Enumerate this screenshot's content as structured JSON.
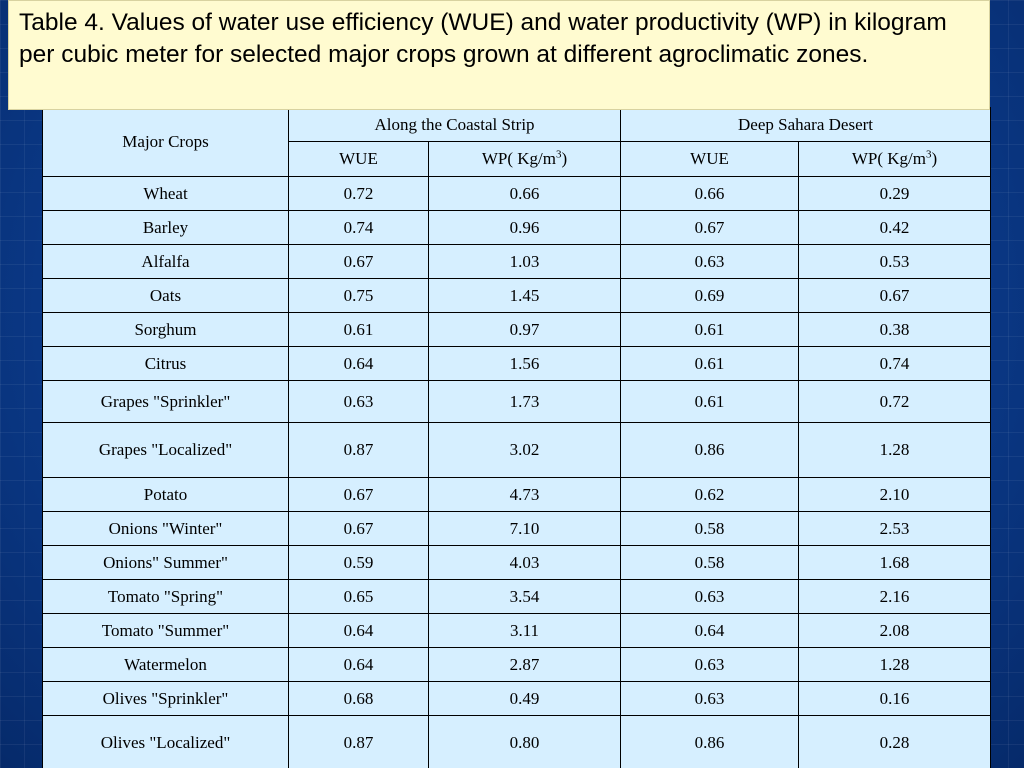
{
  "caption": "Table 4. Values of water use efficiency (WUE)  and water productivity (WP) in kilogram per cubic meter  for selected major crops grown at different agroclimatic zones.",
  "table": {
    "crop_header": "Major Crops",
    "zones": [
      "Along the Coastal Strip",
      "Deep Sahara Desert"
    ],
    "sub_wue": "WUE",
    "sub_wp": "WP( Kg/m",
    "sub_wp_sup": "3",
    "sub_wp_close": ")",
    "rows": [
      {
        "crop": "Wheat",
        "v": [
          "0.72",
          "0.66",
          "0.66",
          "0.29"
        ]
      },
      {
        "crop": "Barley",
        "v": [
          "0.74",
          "0.96",
          "0.67",
          "0.42"
        ]
      },
      {
        "crop": "Alfalfa",
        "v": [
          "0.67",
          "1.03",
          "0.63",
          "0.53"
        ]
      },
      {
        "crop": "Oats",
        "v": [
          "0.75",
          "1.45",
          "0.69",
          "0.67"
        ]
      },
      {
        "crop": "Sorghum",
        "v": [
          "0.61",
          "0.97",
          "0.61",
          "0.38"
        ]
      },
      {
        "crop": "Citrus",
        "v": [
          "0.64",
          "1.56",
          "0.61",
          "0.74"
        ]
      },
      {
        "crop": "Grapes \"Sprinkler\"",
        "v": [
          "0.63",
          "1.73",
          "0.61",
          "0.72"
        ]
      },
      {
        "crop": "Grapes \"Localized\"",
        "v": [
          "0.87",
          "3.02",
          "0.86",
          "1.28"
        ]
      },
      {
        "crop": "Potato",
        "v": [
          "0.67",
          "4.73",
          "0.62",
          "2.10"
        ]
      },
      {
        "crop": "Onions \"Winter\"",
        "v": [
          "0.67",
          "7.10",
          "0.58",
          "2.53"
        ]
      },
      {
        "crop": "Onions\" Summer\"",
        "v": [
          "0.59",
          "4.03",
          "0.58",
          "1.68"
        ]
      },
      {
        "crop": "Tomato \"Spring\"",
        "v": [
          "0.65",
          "3.54",
          "0.63",
          "2.16"
        ]
      },
      {
        "crop": "Tomato \"Summer\"",
        "v": [
          "0.64",
          "3.11",
          "0.64",
          "2.08"
        ]
      },
      {
        "crop": "Watermelon",
        "v": [
          "0.64",
          "2.87",
          "0.63",
          "1.28"
        ]
      },
      {
        "crop": "Olives \"Sprinkler\"",
        "v": [
          "0.68",
          "0.49",
          "0.63",
          "0.16"
        ]
      },
      {
        "crop": "Olives \"Localized\"",
        "v": [
          "0.87",
          "0.80",
          "0.86",
          "0.28"
        ]
      }
    ]
  }
}
